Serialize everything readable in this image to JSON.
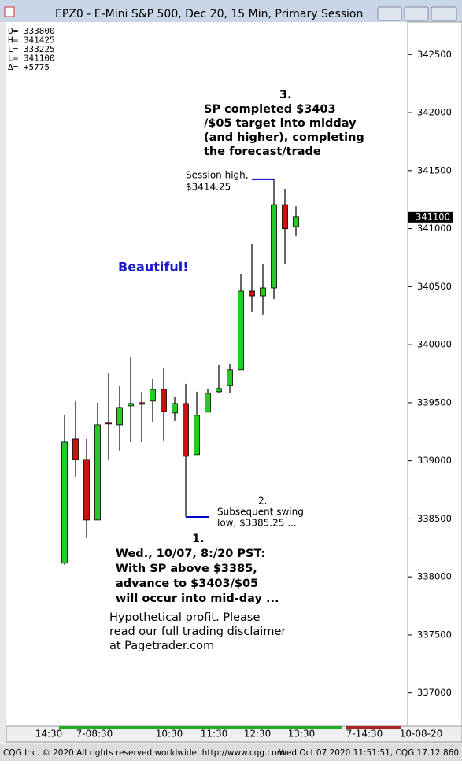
{
  "window_title": "EPZ0 - E-Mini S&P 500, Dec 20, 15 Min, Primary Session",
  "info": [
    "O=  333800",
    "H=  341425",
    "L=  333225",
    "L=  341100",
    "Δ=    +5775"
  ],
  "status_left": "CQG Inc. © 2020 All rights reserved worldwide. http://www.cqg.com",
  "status_right": "Wed Oct 07 2020 11:51:51, CQG 17.12.860",
  "chart_data": {
    "type": "candlestick",
    "up_color": "#22cc22",
    "down_color": "#cc1111",
    "open": [
      338118,
      339188,
      339012,
      338490,
      339331,
      339310,
      339473,
      339500,
      339514,
      339615,
      339412,
      339493,
      339053,
      339419,
      339595,
      339649,
      339785,
      340462,
      340421,
      340489,
      341207,
      341017
    ],
    "high": [
      339392,
      339514,
      339188,
      339500,
      339757,
      339649,
      339893,
      339595,
      339703,
      339798,
      339548,
      339663,
      339595,
      339622,
      339825,
      339839,
      340611,
      340868,
      340692,
      341425,
      341343,
      341193
    ],
    "low": [
      338104,
      338863,
      338335,
      338490,
      339012,
      339087,
      339161,
      339161,
      339337,
      339175,
      339344,
      338525,
      339053,
      339419,
      339581,
      339581,
      339785,
      340286,
      340259,
      340394,
      340692,
      340936
    ],
    "close": [
      339161,
      339012,
      338490,
      339310,
      339320,
      339459,
      339493,
      339493,
      339615,
      339425,
      339493,
      339039,
      339392,
      339581,
      339622,
      339785,
      340462,
      340421,
      340489,
      341207,
      341000,
      341100
    ],
    "last_price": 341100,
    "ylim": [
      336720,
      342780
    ],
    "yticks": [
      337000,
      337500,
      338000,
      338500,
      339000,
      339500,
      340000,
      340500,
      341000,
      341500,
      342000,
      342500
    ],
    "x_labels": [
      "14:30",
      "7-08:30",
      "10:30",
      "11:30",
      "12:30",
      "13:30",
      "7-14:30",
      "10-08-20"
    ],
    "annotations": {
      "note3": [
        "3.",
        "SP completed $3403",
        "/$05 target into midday",
        "(and higher), completing",
        "the forecast/trade"
      ],
      "session_high": [
        "Session high,",
        "$3414.25"
      ],
      "beautiful": "Beautiful!",
      "note2": [
        "2.",
        "Subsequent swing",
        "low, $3385.25 ..."
      ],
      "note1": [
        "1.",
        "Wed., 10/07, 8:/20 PST:",
        "With SP above $3385,",
        "advance to $3403/$05",
        "will occur into mid-day ..."
      ],
      "disclaimer": [
        "Hypothetical profit. Please",
        "read our full trading disclaimer",
        "at Pagetrader.com"
      ]
    }
  }
}
